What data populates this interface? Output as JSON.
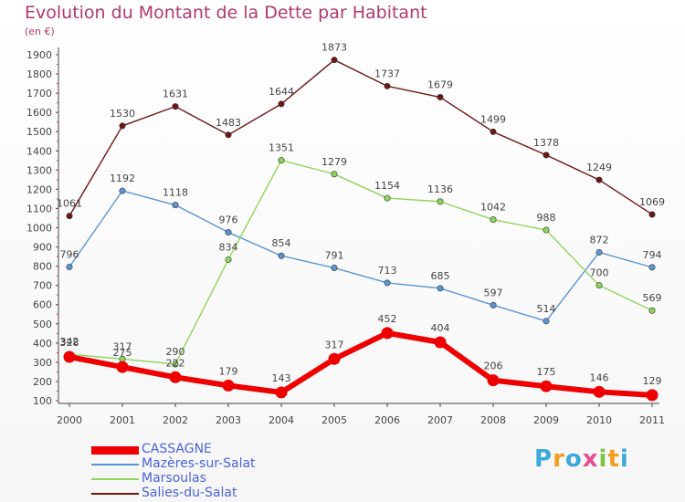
{
  "header": {
    "title": "Evolution du Montant de la Dette par Habitant",
    "subtitle": "(en €)"
  },
  "brand": {
    "letters": [
      "P",
      "r",
      "o",
      "x",
      "i",
      "t",
      "i"
    ],
    "colors": [
      "#3da9d9",
      "#f39c1e",
      "#3da9d9",
      "#e84f8c",
      "#7cc444",
      "#f39c1e",
      "#3da9d9"
    ]
  },
  "chart_data": {
    "type": "line",
    "title": "Evolution du Montant de la Dette par Habitant",
    "subtitle": "(en €)",
    "x": [
      "2000",
      "2001",
      "2002",
      "2003",
      "2004",
      "2005",
      "2006",
      "2007",
      "2008",
      "2009",
      "2010",
      "2011"
    ],
    "y_ticks": [
      100,
      200,
      300,
      400,
      500,
      600,
      700,
      800,
      900,
      1000,
      1100,
      1200,
      1300,
      1400,
      1500,
      1600,
      1700,
      1800,
      1900
    ],
    "ylim": [
      100,
      1900
    ],
    "grid": false,
    "legend_position": "bottom-left",
    "series": [
      {
        "name": "Salies-du-Salat",
        "color": "#6e1616",
        "values": [
          1061,
          1530,
          1631,
          1483,
          1644,
          1873,
          1737,
          1679,
          1499,
          1378,
          1249,
          1069
        ]
      },
      {
        "name": "Mazères-sur-Salat",
        "color": "#5b95d1",
        "values": [
          796,
          1192,
          1118,
          976,
          854,
          791,
          713,
          685,
          597,
          514,
          872,
          794
        ]
      },
      {
        "name": "Marsoulas",
        "color": "#8fd45c",
        "values": [
          342,
          317,
          290,
          834,
          1351,
          1279,
          1154,
          1136,
          1042,
          988,
          700,
          569
        ]
      },
      {
        "name": "CASSAGNE",
        "color": "#ee0000",
        "values": [
          328,
          275,
          222,
          179,
          143,
          317,
          452,
          404,
          206,
          175,
          146,
          129
        ]
      }
    ],
    "legend": [
      "CASSAGNE",
      "Mazères-sur-Salat",
      "Marsoulas",
      "Salies-du-Salat"
    ]
  }
}
